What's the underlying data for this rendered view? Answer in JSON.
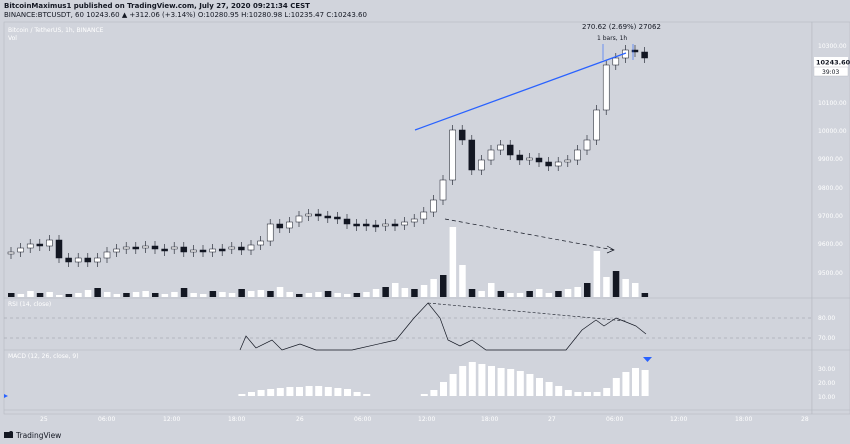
{
  "header": {
    "publish_line": "BitcoinMaximus1 published on TradingView.com, July 27, 2020 09:21:34 CEST",
    "symbol_line": "BINANCE:BTCUSDT, 60",
    "change": "10243.60 ▲ +312.06 (+3.14%)",
    "ohlc": "O:10280.95 H:10280.98 L:10235.47 C:10243.60"
  },
  "chart": {
    "legend_main": "Bitcoin / TetherUS, 1h, BINANCE",
    "legend_vol": "Vol",
    "measure_label": "270.62 (2.69%) 27062",
    "measure_bars": "1 bars, 1h",
    "price_badge": "10243.60",
    "countdown_badge": "39:03",
    "price_ticks": [
      "10300.00",
      "10200.00",
      "10100.00",
      "10000.00",
      "9900.00",
      "9800.00",
      "9700.00",
      "9600.00",
      "9500.00"
    ],
    "rsi_label": "RSI (14, close)",
    "rsi_ticks": [
      "80.00",
      "70.00"
    ],
    "macd_label": "MACD (12, 26, close, 9)",
    "macd_ticks": [
      "30.00",
      "20.00",
      "10.00"
    ],
    "time_ticks": [
      "25",
      "06:00",
      "12:00",
      "18:00",
      "26",
      "06:00",
      "12:00",
      "18:00",
      "27",
      "06:00",
      "12:00",
      "18:00",
      "28"
    ]
  },
  "footer": {
    "brand": "TradingView"
  },
  "colors": {
    "background": "#d1d4dc",
    "trendline": "#2962ff",
    "up_candle": "#ffffff",
    "down_candle": "#131722"
  }
}
